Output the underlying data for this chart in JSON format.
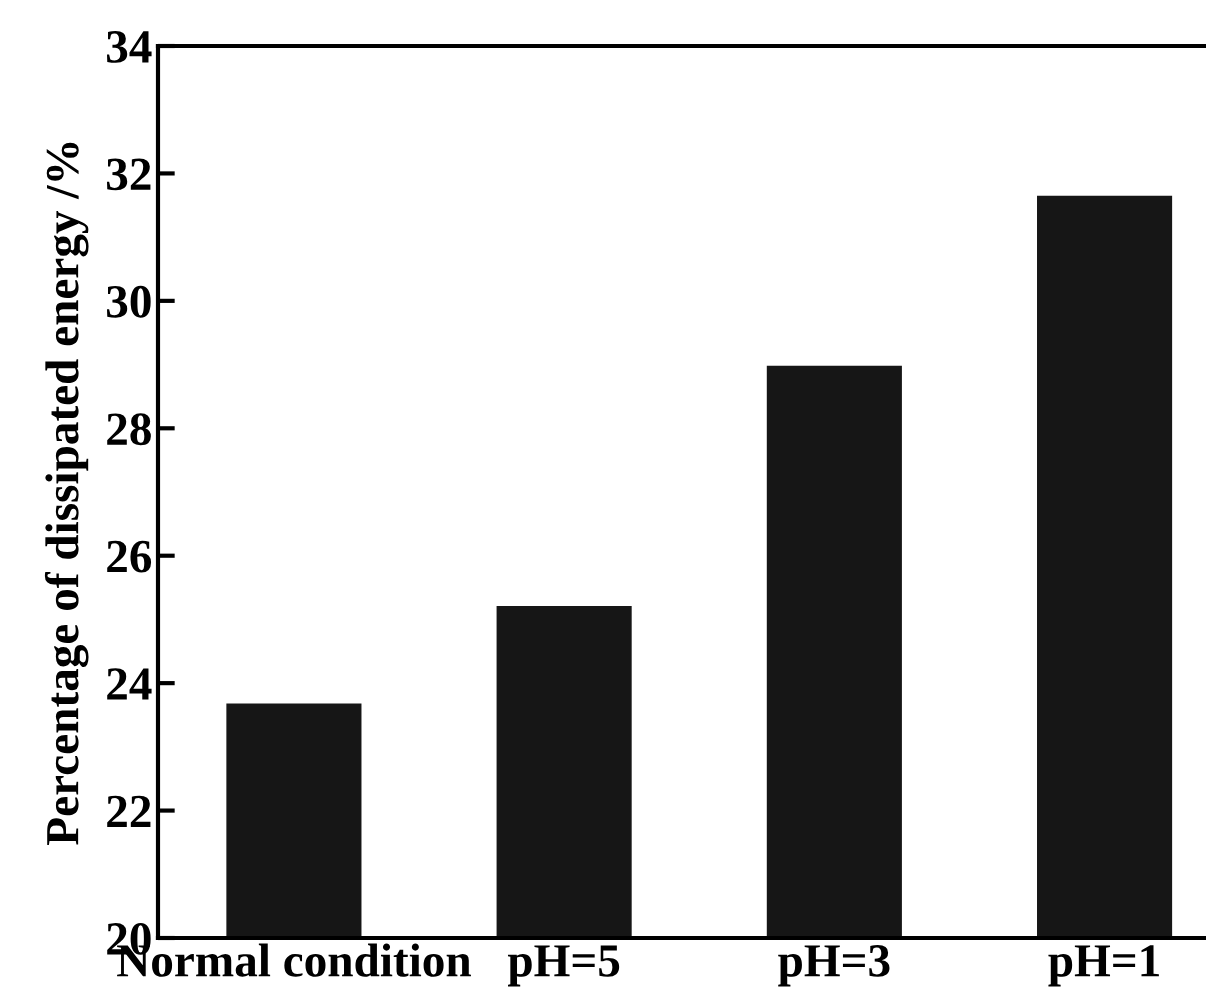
{
  "chart_data": {
    "type": "bar",
    "ylabel": "Percentage of dissipated energy /%",
    "categories": [
      "Normal condition",
      "pH=5",
      "pH=3",
      "pH=1"
    ],
    "values": [
      23.68,
      25.21,
      28.98,
      31.65
    ],
    "color": "#161616",
    "ylim": [
      20,
      34
    ],
    "yticks": [
      20,
      22,
      24,
      26,
      28,
      30,
      32,
      34
    ],
    "grid": false
  }
}
